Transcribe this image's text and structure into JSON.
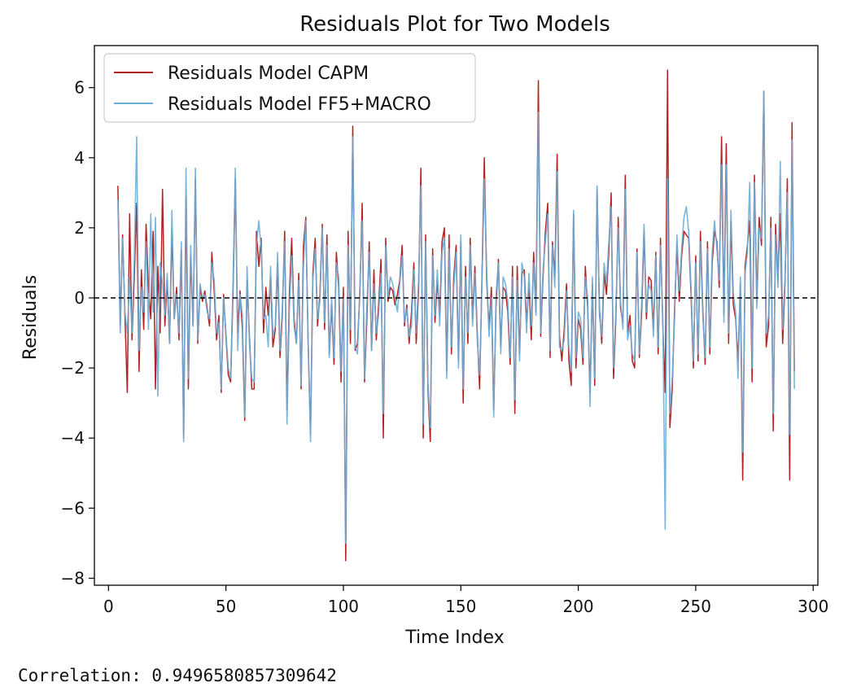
{
  "chart_data": {
    "type": "line",
    "title": "Residuals Plot for Two Models",
    "xlabel": "Time Index",
    "ylabel": "Residuals",
    "xlim": [
      -6,
      302
    ],
    "ylim": [
      -8.2,
      7.2
    ],
    "xticks": [
      0,
      50,
      100,
      150,
      200,
      250,
      300
    ],
    "yticks": [
      -8,
      -6,
      -4,
      -2,
      0,
      2,
      4,
      6
    ],
    "xtick_labels": [
      "0",
      "50",
      "100",
      "150",
      "200",
      "250",
      "300"
    ],
    "ytick_labels": [
      "−8",
      "−6",
      "−4",
      "−2",
      "0",
      "2",
      "4",
      "6"
    ],
    "zero_line": 0,
    "grid": false,
    "legend_position": "upper-left",
    "x_start": 4,
    "series": [
      {
        "name": "Residuals Model CAPM",
        "color": "#b22222",
        "values": [
          3.2,
          -0.8,
          1.8,
          -0.5,
          -2.7,
          2.4,
          -1.2,
          0.6,
          2.7,
          -2.1,
          0.8,
          -0.9,
          2.1,
          0.3,
          -0.6,
          1.9,
          -2.6,
          0.9,
          -1.0,
          3.1,
          -0.8,
          0.5,
          -1.3,
          1.9,
          -0.6,
          0.3,
          -1.2,
          1.4,
          -4.0,
          2.9,
          -2.6,
          1.2,
          -0.8,
          3.4,
          -1.3,
          0.3,
          -0.1,
          0.2,
          -0.3,
          -0.8,
          1.3,
          0.2,
          -1.2,
          -0.5,
          -2.7,
          0.1,
          -1.1,
          -2.2,
          -2.4,
          0.1,
          3.4,
          -1.0,
          0.2,
          -0.9,
          -3.5,
          0.5,
          -1.1,
          -2.6,
          -2.6,
          1.9,
          0.9,
          1.7,
          -1.0,
          0.3,
          -0.5,
          0.6,
          -1.4,
          -0.9,
          1.0,
          -1.7,
          -0.5,
          1.9,
          -3.2,
          0.1,
          1.7,
          -0.6,
          -1.3,
          0.7,
          -2.6,
          1.5,
          2.3,
          -1.3,
          -3.9,
          0.7,
          1.7,
          -0.8,
          0.1,
          2.1,
          -0.9,
          1.8,
          -1.6,
          -0.2,
          -1.9,
          1.3,
          0.3,
          -2.4,
          0.3,
          -7.5,
          1.9,
          -1.3,
          4.9,
          -1.5,
          -1.3,
          0.1,
          2.7,
          -2.4,
          -0.6,
          1.6,
          -1.5,
          0.8,
          -1.2,
          -0.2,
          1.1,
          -4.0,
          1.7,
          -0.1,
          0.3,
          0.2,
          -0.2,
          0.1,
          0.5,
          1.5,
          -0.8,
          -0.2,
          -1.3,
          -0.4,
          1.0,
          -1.3,
          0.2,
          3.7,
          -4.0,
          1.8,
          -2.6,
          -4.1,
          1.4,
          -0.7,
          0.5,
          -0.5,
          1.6,
          2.0,
          -2.1,
          1.8,
          -1.6,
          0.6,
          1.5,
          -1.8,
          1.6,
          -3.0,
          0.9,
          -1.3,
          1.7,
          -0.6,
          0.9,
          -1.0,
          -2.6,
          0.6,
          4.0,
          0.5,
          -0.9,
          0.3,
          -3.2,
          -0.2,
          1.1,
          -1.4,
          0.3,
          0.2,
          -0.4,
          -1.9,
          0.9,
          -3.3,
          0.9,
          -1.6,
          0.7,
          0.8,
          -0.7,
          0.4,
          -1.2,
          1.3,
          -0.4,
          6.2,
          -1.1,
          0.6,
          1.9,
          2.7,
          -1.7,
          1.6,
          0.6,
          4.1,
          -1.1,
          -1.8,
          -0.9,
          0.4,
          -1.8,
          -2.5,
          2.4,
          -2.0,
          -0.6,
          -0.9,
          -1.9,
          0.9,
          -0.3,
          -2.7,
          0.4,
          -2.5,
          3.1,
          -0.3,
          -1.3,
          0.7,
          0.1,
          1.3,
          3.0,
          -2.3,
          -0.6,
          2.3,
          -0.3,
          -0.7,
          3.5,
          -1.0,
          -0.5,
          -1.8,
          -2.0,
          1.4,
          -1.7,
          -0.4,
          1.9,
          -0.6,
          0.6,
          0.5,
          -0.9,
          1.3,
          -1.6,
          1.7,
          -0.8,
          -2.7,
          6.5,
          -3.7,
          -2.6,
          -0.3,
          1.5,
          -0.1,
          1.2,
          1.9,
          1.8,
          1.7,
          0.1,
          -2.0,
          1.2,
          -1.8,
          1.9,
          -0.3,
          -1.9,
          1.6,
          -1.6,
          1.0,
          1.9,
          1.6,
          0.3,
          4.6,
          -0.5,
          4.4,
          -1.3,
          2.2,
          -0.2,
          -0.6,
          -1.8,
          0.4,
          -5.2,
          0.9,
          1.5,
          2.2,
          -2.4,
          3.5,
          -0.1,
          2.3,
          1.5,
          5.9,
          -1.4,
          -0.8,
          2.3,
          -3.8,
          2.1,
          0.5,
          2.4,
          -1.3,
          0.4,
          3.4,
          -5.2,
          5.0,
          -2.1
        ]
      },
      {
        "name": "Residuals Model FF5+MACRO",
        "color": "#6baed6",
        "values": [
          2.8,
          -1.0,
          1.7,
          -0.4,
          -1.0,
          0.6,
          -1.0,
          1.2,
          4.6,
          -1.5,
          0.3,
          -0.4,
          1.6,
          -0.9,
          2.4,
          -0.4,
          2.3,
          -2.8,
          1.0,
          0.4,
          -0.5,
          0.7,
          -1.3,
          2.5,
          -0.6,
          0.1,
          -1.0,
          1.6,
          -4.1,
          3.7,
          -2.3,
          1.5,
          -0.8,
          3.7,
          -1.2,
          0.4,
          0.0,
          0.1,
          -0.4,
          -0.6,
          1.0,
          0.5,
          -1.0,
          -0.7,
          -2.6,
          0.0,
          -1.0,
          -2.0,
          -2.3,
          0.4,
          3.7,
          -1.5,
          0.1,
          -0.5,
          -3.4,
          0.9,
          -1.3,
          -2.3,
          -2.4,
          1.5,
          2.2,
          1.4,
          -0.6,
          -0.5,
          -1.4,
          0.9,
          -1.1,
          -0.8,
          1.3,
          -1.5,
          -0.3,
          1.6,
          -3.6,
          -0.3,
          1.2,
          -0.8,
          -1.3,
          0.5,
          -2.5,
          0.9,
          2.2,
          -1.2,
          -4.1,
          0.5,
          1.4,
          -0.6,
          -0.1,
          2.0,
          -0.7,
          1.5,
          -1.7,
          0.0,
          -1.7,
          1.0,
          0.6,
          -2.1,
          0.0,
          -7.0,
          1.5,
          -0.9,
          4.6,
          -1.4,
          -1.6,
          0.3,
          2.2,
          -2.3,
          -0.2,
          1.3,
          -1.5,
          0.4,
          -1.0,
          -0.5,
          0.7,
          -3.3,
          1.5,
          0.0,
          0.6,
          0.4,
          0.0,
          -0.4,
          0.4,
          1.2,
          -0.7,
          -0.3,
          -1.1,
          -0.8,
          0.8,
          -1.0,
          0.5,
          3.2,
          -3.6,
          1.6,
          -2.4,
          -3.7,
          1.2,
          -0.5,
          0.8,
          -0.8,
          1.3,
          1.7,
          -2.3,
          1.4,
          -1.4,
          0.3,
          1.3,
          -2.0,
          1.8,
          -2.6,
          0.6,
          -1.0,
          1.5,
          -0.8,
          0.7,
          -1.2,
          -2.2,
          0.4,
          3.4,
          0.8,
          -1.1,
          0.0,
          -3.4,
          0.1,
          1.0,
          -1.6,
          0.6,
          0.4,
          -0.1,
          -1.7,
          0.6,
          -2.9,
          0.5,
          -1.8,
          1.0,
          0.6,
          -1.0,
          0.7,
          -0.8,
          1.0,
          -0.5,
          5.3,
          -1.0,
          0.8,
          1.6,
          2.4,
          -1.5,
          1.5,
          0.3,
          3.6,
          -1.4,
          -1.5,
          -1.2,
          0.2,
          -1.4,
          -2.1,
          2.5,
          -1.7,
          -0.4,
          -0.6,
          -1.7,
          0.6,
          0.0,
          -3.1,
          0.6,
          -2.3,
          3.2,
          -0.5,
          -1.1,
          1.0,
          0.4,
          1.6,
          2.6,
          -2.0,
          -0.4,
          2.0,
          -0.1,
          -0.9,
          3.1,
          -1.2,
          -0.8,
          -1.6,
          -1.8,
          1.3,
          -1.6,
          -0.1,
          2.1,
          -0.4,
          0.4,
          0.2,
          -1.1,
          1.2,
          -1.4,
          1.5,
          -0.6,
          -6.6,
          3.4,
          -3.3,
          -2.3,
          -0.6,
          1.8,
          0.2,
          1.4,
          2.3,
          2.6,
          1.9,
          0.3,
          -1.8,
          1.0,
          -1.6,
          1.6,
          -0.5,
          -1.7,
          1.4,
          -1.4,
          1.3,
          2.2,
          1.4,
          0.5,
          3.8,
          -0.7,
          3.8,
          -1.0,
          2.5,
          0.1,
          -0.4,
          -2.3,
          0.6,
          -4.4,
          0.7,
          1.3,
          3.3,
          -2.0,
          3.3,
          -0.3,
          2.0,
          1.7,
          5.9,
          -1.0,
          -0.5,
          2.0,
          -3.3,
          1.8,
          0.3,
          3.9,
          -0.9,
          0.6,
          3.0,
          -3.9,
          4.5,
          -2.6
        ]
      }
    ]
  },
  "output": {
    "correlation_text": "Correlation: 0.9496580857309642"
  }
}
